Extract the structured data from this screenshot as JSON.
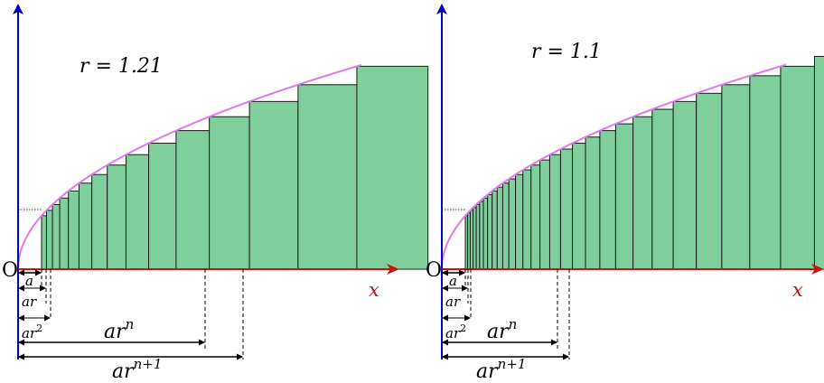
{
  "panels": [
    {
      "r_label": "r = 1.21",
      "r": 1.21,
      "bars_shown": 15,
      "origin_label": "O",
      "x_axis_label": "x",
      "width_labels": {
        "a": "a",
        "ar": "ar",
        "ar2": "ar",
        "ar2_sup": "2",
        "arn": "ar",
        "arn_sup": "n",
        "arn1": "ar",
        "arn1_sup": "n+1"
      }
    },
    {
      "r_label": "r = 1.1",
      "r": 1.1,
      "bars_shown": 36,
      "origin_label": "O",
      "x_axis_label": "x",
      "width_labels": {
        "a": "a",
        "ar": "ar",
        "ar2": "ar",
        "ar2_sup": "2",
        "arn": "ar",
        "arn_sup": "n",
        "arn1": "ar",
        "arn1_sup": "n+1"
      }
    }
  ],
  "colors": {
    "y_axis": "#0000cc",
    "x_axis": "#cc1111",
    "curve": "#e07ae8",
    "bar_fill": "#7ecf9b",
    "bar_stroke": "#1a1a1a"
  }
}
